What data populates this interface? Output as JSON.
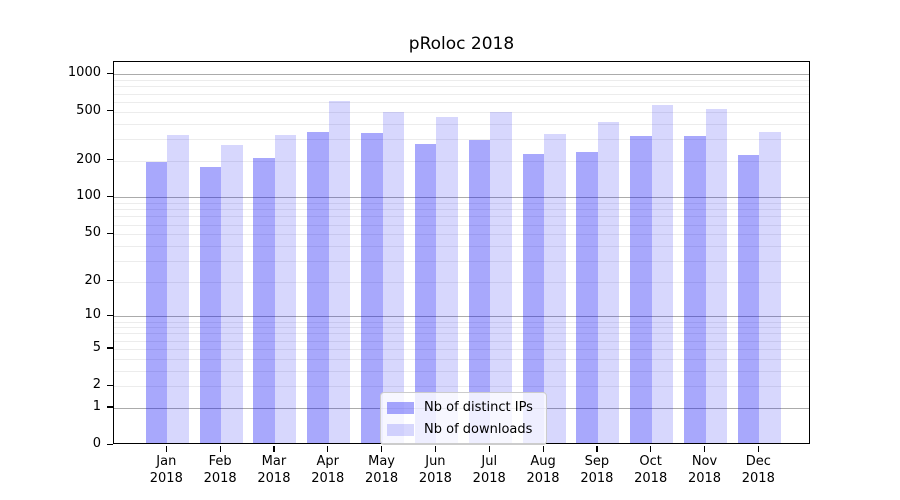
{
  "chart_data": {
    "type": "bar",
    "title": "pRoloc 2018",
    "categories": [
      "Jan",
      "Feb",
      "Mar",
      "Apr",
      "May",
      "Jun",
      "Jul",
      "Aug",
      "Sep",
      "Oct",
      "Nov",
      "Dec"
    ],
    "category_year": "2018",
    "series": [
      {
        "name": "Nb of distinct IPs",
        "solid_hex": "#a8a8f8",
        "base_color_rgb": [
          0,
          0,
          245
        ],
        "alpha": 0.34,
        "values": [
          186,
          172,
          203,
          332,
          322,
          262,
          282,
          217,
          228,
          304,
          306,
          214
        ]
      },
      {
        "name": "Nb of downloads",
        "solid_hex": "#d8d8f8",
        "base_color_rgb": [
          0,
          0,
          245
        ],
        "alpha": 0.155,
        "values": [
          313,
          258,
          313,
          588,
          479,
          436,
          478,
          316,
          400,
          543,
          507,
          332
        ]
      }
    ],
    "y_axis": {
      "scale": "log10(value+1)",
      "tick_values": [
        1000,
        500,
        200,
        100,
        50,
        20,
        10,
        5,
        2,
        1,
        0
      ],
      "tick_labels": [
        "1000",
        "500",
        "200",
        "100",
        "50",
        "20",
        "10",
        "5",
        "2",
        "1",
        "0"
      ],
      "range": [
        0,
        1240
      ],
      "major_gridlines": [
        1,
        10,
        100,
        1000
      ],
      "minor_gridlines": [
        2,
        3,
        4,
        5,
        6,
        7,
        8,
        9,
        20,
        30,
        40,
        50,
        60,
        70,
        80,
        90,
        200,
        300,
        400,
        500,
        600,
        700,
        800,
        900
      ]
    },
    "legend": {
      "position": "bottom-center"
    },
    "grid": true,
    "colors": {
      "grid_major": "#ababab",
      "grid_minor": "#ececec",
      "axis": "#000000",
      "background": "#ffffff",
      "legend_border": "#cccccc"
    }
  }
}
